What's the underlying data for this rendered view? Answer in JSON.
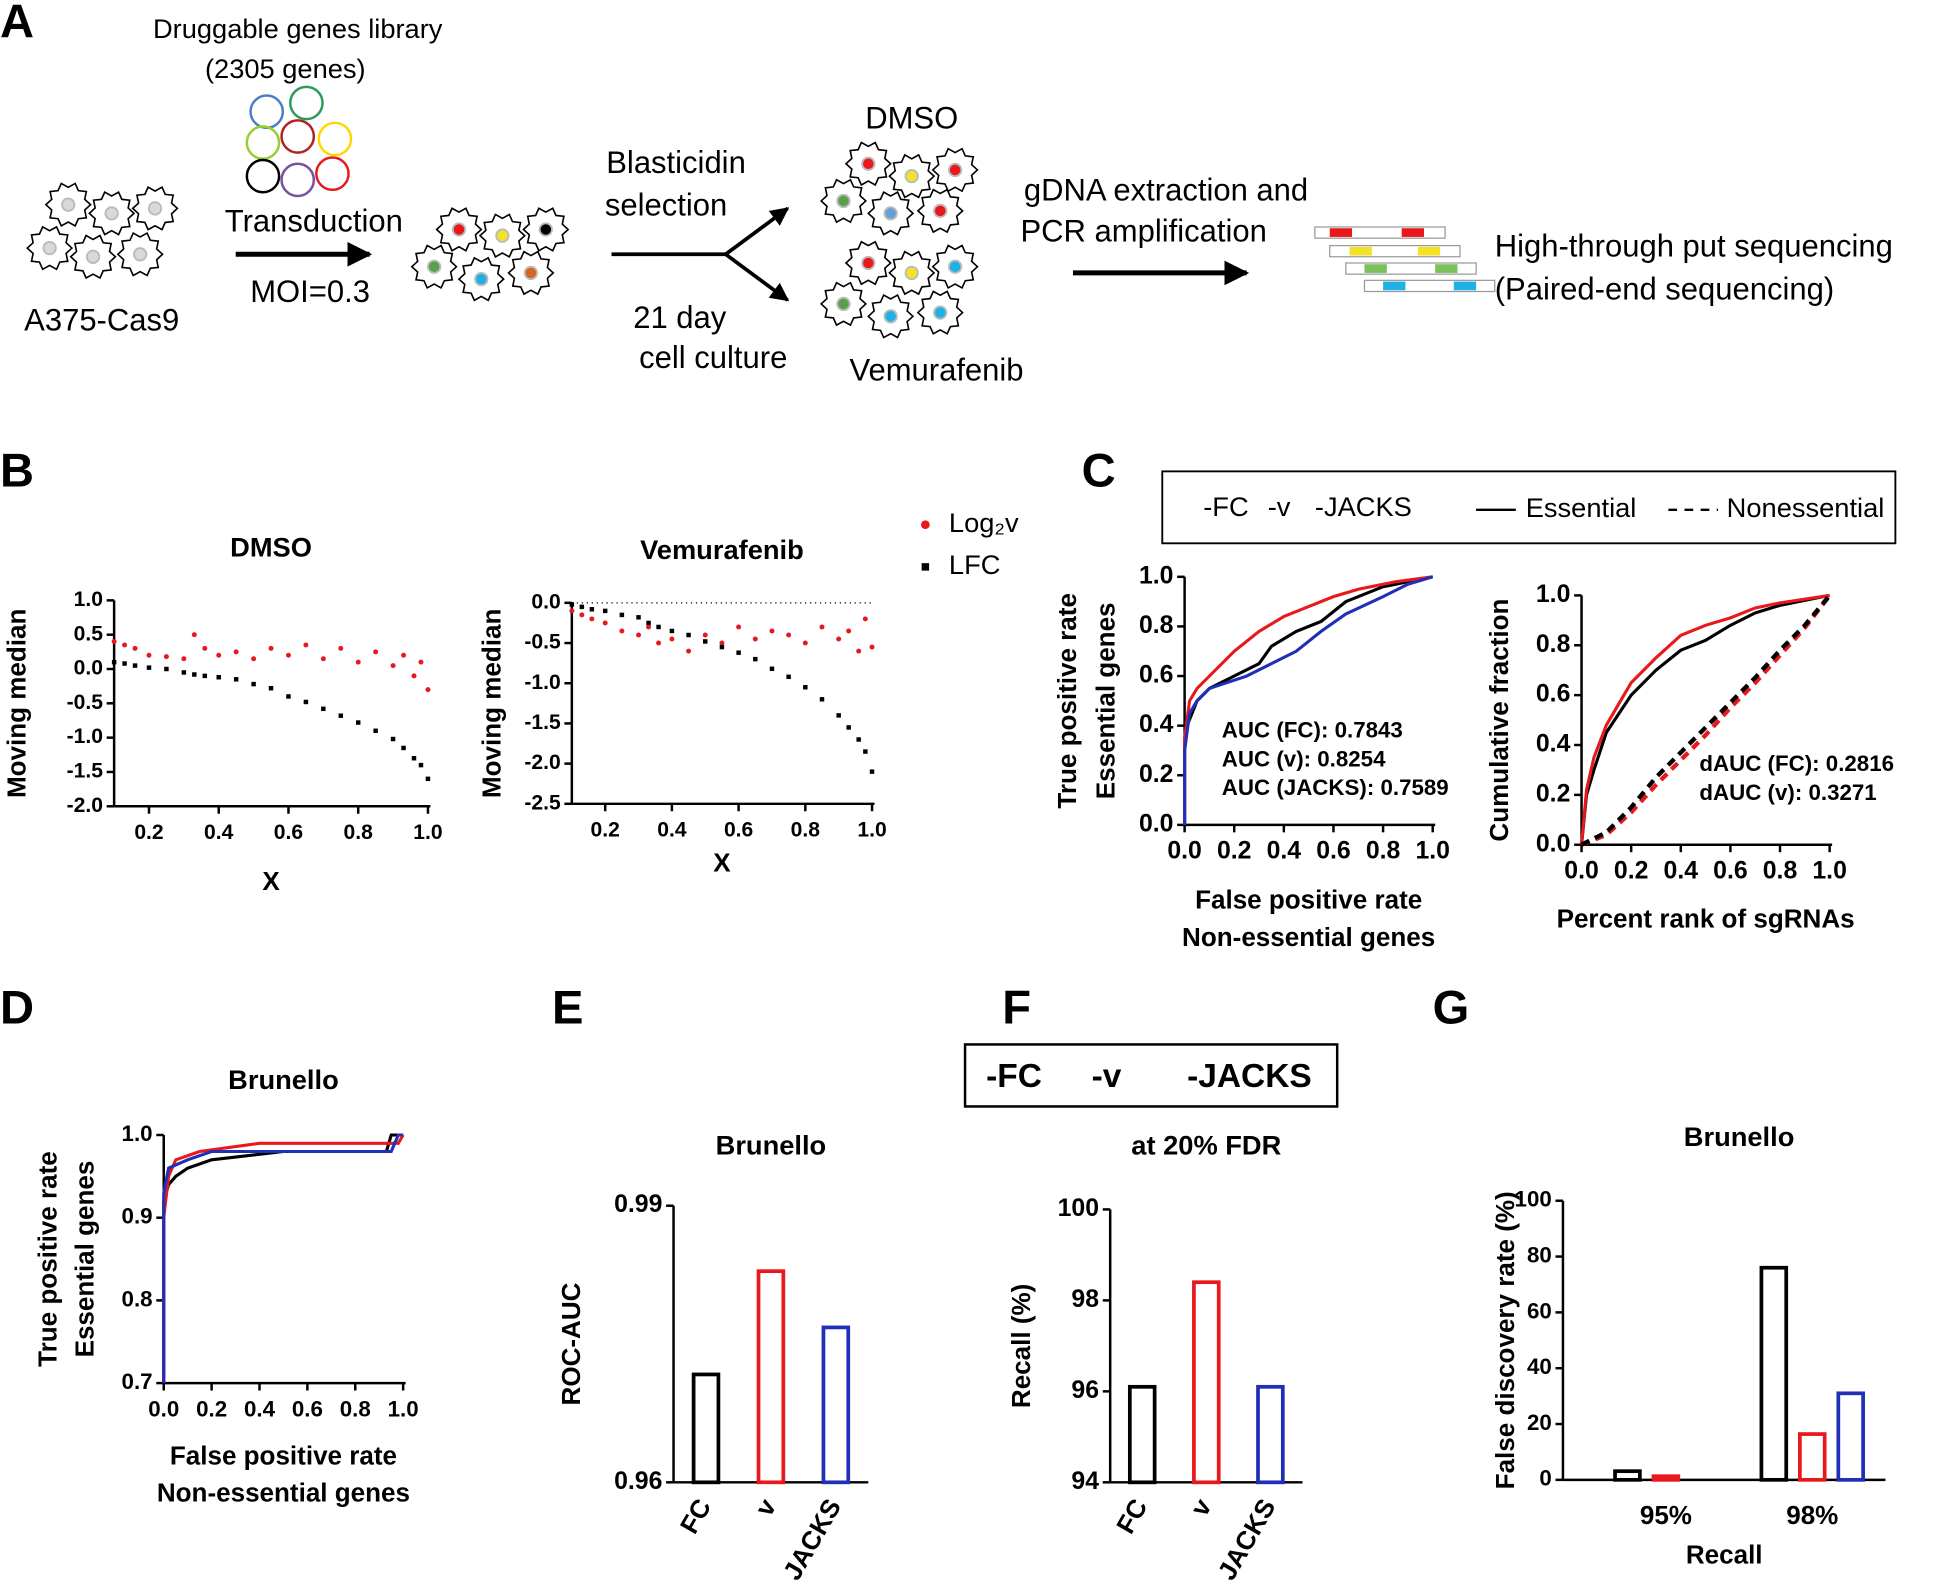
{
  "panels": [
    "A",
    "B",
    "C",
    "D",
    "E",
    "F",
    "G"
  ],
  "diagram": {
    "library": "Druggable genes library",
    "library_size": "(2305 genes)",
    "cell_line": "A375-Cas9",
    "transduction": "Transduction",
    "moi": "MOI=0.3",
    "selection": [
      "Blasticidin",
      "selection"
    ],
    "culture": [
      "21 day",
      "cell culture"
    ],
    "conditions": [
      "DMSO",
      "Vemurafenib"
    ],
    "extraction": [
      "gDNA extraction and",
      "PCR amplification"
    ],
    "sequencing": [
      "High-through put sequencing",
      "(Paired-end sequencing)"
    ]
  },
  "chart_data": [
    {
      "type": "scatter",
      "title": "DMSO",
      "x_label": "X",
      "y_label": "Moving median",
      "xlim": [
        0.1,
        1.0
      ],
      "xticks": [
        0.2,
        0.4,
        0.6,
        0.8,
        {
          "value": 1,
          "label": "1.0"
        }
      ],
      "ylim": [
        -2,
        1
      ],
      "yticks": [
        {
          "value": -2,
          "label": "-2.0"
        },
        -1.5,
        {
          "value": -1,
          "label": "-1.0"
        },
        -0.5,
        {
          "value": 0,
          "label": "0.0"
        },
        0.5,
        {
          "value": 1,
          "label": "1.0"
        }
      ],
      "series": [
        {
          "name": "Log₂v",
          "color": "#e8191c",
          "marker": "circle",
          "x": [
            0.1,
            0.13,
            0.16,
            0.2,
            0.25,
            0.3,
            0.33,
            0.36,
            0.4,
            0.45,
            0.5,
            0.55,
            0.6,
            0.65,
            0.7,
            0.75,
            0.8,
            0.85,
            0.9,
            0.93,
            0.96,
            0.98,
            1.0
          ],
          "values": [
            0.4,
            0.35,
            0.3,
            0.2,
            0.18,
            0.15,
            0.5,
            0.3,
            0.2,
            0.25,
            0.15,
            0.3,
            0.2,
            0.35,
            0.15,
            0.3,
            0.1,
            0.25,
            0.05,
            0.2,
            -0.1,
            0.1,
            -0.3
          ]
        },
        {
          "name": "LFC",
          "color": "#000000",
          "marker": "square",
          "x": [
            0.1,
            0.13,
            0.16,
            0.2,
            0.25,
            0.3,
            0.33,
            0.36,
            0.4,
            0.45,
            0.5,
            0.55,
            0.6,
            0.65,
            0.7,
            0.75,
            0.8,
            0.85,
            0.9,
            0.93,
            0.96,
            0.98,
            1.0
          ],
          "values": [
            0.1,
            0.08,
            0.05,
            0.02,
            0,
            -0.05,
            -0.08,
            -0.1,
            -0.12,
            -0.15,
            -0.22,
            -0.28,
            -0.4,
            -0.48,
            -0.58,
            -0.68,
            -0.78,
            -0.9,
            -1.02,
            -1.15,
            -1.3,
            -1.4,
            -1.6
          ]
        }
      ]
    },
    {
      "type": "scatter",
      "title": "Vemurafenib",
      "x_label": "X",
      "y_label": "Moving median",
      "xlim": [
        0.1,
        1.0
      ],
      "xticks": [
        0.2,
        0.4,
        0.6,
        0.8,
        {
          "value": 1,
          "label": "1.0"
        }
      ],
      "ylim": [
        -2.5,
        0
      ],
      "yticks": [
        -2.5,
        {
          "value": -2,
          "label": "-2.0"
        },
        -1.5,
        {
          "value": -1,
          "label": "-1.0"
        },
        -0.5,
        {
          "value": 0,
          "label": "0.0"
        }
      ],
      "reference_line": 0,
      "series": [
        {
          "color": "#e8191c",
          "marker": "circle",
          "x": [
            0.1,
            0.13,
            0.16,
            0.2,
            0.25,
            0.3,
            0.33,
            0.36,
            0.4,
            0.45,
            0.5,
            0.55,
            0.6,
            0.65,
            0.7,
            0.75,
            0.8,
            0.85,
            0.9,
            0.93,
            0.96,
            0.98,
            1.0
          ],
          "values": [
            -0.1,
            -0.15,
            -0.2,
            -0.25,
            -0.35,
            -0.4,
            -0.3,
            -0.5,
            -0.45,
            -0.6,
            -0.4,
            -0.5,
            -0.3,
            -0.45,
            -0.35,
            -0.4,
            -0.5,
            -0.3,
            -0.45,
            -0.35,
            -0.6,
            -0.2,
            -0.55
          ]
        },
        {
          "color": "#000000",
          "marker": "square",
          "x": [
            0.1,
            0.13,
            0.16,
            0.2,
            0.25,
            0.3,
            0.33,
            0.36,
            0.4,
            0.45,
            0.5,
            0.55,
            0.6,
            0.65,
            0.7,
            0.75,
            0.8,
            0.85,
            0.9,
            0.93,
            0.96,
            0.98,
            1.0
          ],
          "values": [
            -0.02,
            -0.05,
            -0.08,
            -0.1,
            -0.15,
            -0.18,
            -0.25,
            -0.3,
            -0.35,
            -0.4,
            -0.48,
            -0.55,
            -0.62,
            -0.7,
            -0.82,
            -0.92,
            -1.05,
            -1.2,
            -1.4,
            -1.55,
            -1.7,
            -1.85,
            -2.1
          ]
        }
      ]
    },
    {
      "type": "line",
      "x_label": [
        "False positive rate",
        "Non-essential genes"
      ],
      "y_label": [
        "True positive rate",
        "Essential genes"
      ],
      "xlim": [
        0,
        1
      ],
      "xticks": [
        {
          "value": 0,
          "label": "0.0"
        },
        0.2,
        0.4,
        0.6,
        0.8,
        {
          "value": 1,
          "label": "1.0"
        }
      ],
      "ylim": [
        0,
        1
      ],
      "yticks": [
        {
          "value": 0,
          "label": "0.0"
        },
        0.2,
        0.4,
        0.6,
        0.8,
        {
          "value": 1,
          "label": "1.0"
        }
      ],
      "legend_styles": [
        {
          "name": "Essential",
          "dash": false
        },
        {
          "name": "Nonessential",
          "dash": true
        }
      ],
      "series": [
        {
          "name": "-FC",
          "color": "#000000",
          "x": [
            0,
            0,
            0.01,
            0.03,
            0.05,
            0.1,
            0.2,
            0.3,
            0.35,
            0.45,
            0.55,
            0.65,
            0.8,
            1
          ],
          "values": [
            0,
            0.3,
            0.4,
            0.45,
            0.5,
            0.55,
            0.6,
            0.65,
            0.72,
            0.78,
            0.82,
            0.9,
            0.96,
            1
          ]
        },
        {
          "name": "-v",
          "color": "#e8191c",
          "x": [
            0,
            0,
            0.02,
            0.05,
            0.1,
            0.2,
            0.3,
            0.4,
            0.5,
            0.6,
            0.7,
            0.85,
            1
          ],
          "values": [
            0,
            0.35,
            0.5,
            0.55,
            0.6,
            0.7,
            0.78,
            0.84,
            0.88,
            0.92,
            0.95,
            0.98,
            1
          ]
        },
        {
          "name": "-JACKS",
          "color": "#1f2fb8",
          "x": [
            0,
            0,
            0.02,
            0.05,
            0.1,
            0.25,
            0.35,
            0.45,
            0.55,
            0.65,
            0.8,
            0.9,
            1
          ],
          "values": [
            0,
            0.3,
            0.45,
            0.5,
            0.55,
            0.6,
            0.65,
            0.7,
            0.78,
            0.85,
            0.92,
            0.97,
            1
          ]
        }
      ],
      "annotations": [
        {
          "text": "AUC (FC): 0.7843",
          "color": "#000000"
        },
        {
          "text": "AUC (v): 0.8254",
          "color": "#e8191c"
        },
        {
          "text": "AUC (JACKS): 0.7589",
          "color": "#2e4a7a"
        }
      ]
    },
    {
      "type": "line",
      "x_label": "Percent rank of sgRNAs",
      "y_label": "Cumulative fraction",
      "xlim": [
        0,
        1
      ],
      "xticks": [
        {
          "value": 0,
          "label": "0.0"
        },
        0.2,
        0.4,
        0.6,
        0.8,
        {
          "value": 1,
          "label": "1.0"
        }
      ],
      "ylim": [
        0,
        1
      ],
      "yticks": [
        {
          "value": 0,
          "label": "0.0"
        },
        0.2,
        0.4,
        0.6,
        0.8,
        {
          "value": 1,
          "label": "1.0"
        }
      ],
      "series": [
        {
          "color": "#000000",
          "dash": false,
          "x": [
            0,
            0.02,
            0.05,
            0.1,
            0.2,
            0.3,
            0.4,
            0.5,
            0.6,
            0.7,
            0.8,
            1
          ],
          "values": [
            0,
            0.2,
            0.3,
            0.45,
            0.6,
            0.7,
            0.78,
            0.82,
            0.88,
            0.93,
            0.96,
            1
          ]
        },
        {
          "color": "#e8191c",
          "dash": false,
          "x": [
            0,
            0.02,
            0.05,
            0.1,
            0.2,
            0.3,
            0.4,
            0.5,
            0.6,
            0.7,
            0.8,
            1
          ],
          "values": [
            0,
            0.22,
            0.35,
            0.48,
            0.65,
            0.75,
            0.84,
            0.88,
            0.91,
            0.95,
            0.97,
            1
          ]
        },
        {
          "color": "#e8191c",
          "dash": true,
          "x": [
            0,
            0.1,
            0.2,
            0.3,
            0.4,
            0.5,
            0.6,
            0.7,
            0.8,
            0.9,
            1
          ],
          "values": [
            0,
            0.04,
            0.13,
            0.24,
            0.34,
            0.44,
            0.55,
            0.65,
            0.76,
            0.87,
            1
          ]
        },
        {
          "color": "#000000",
          "dash": true,
          "x": [
            0,
            0.1,
            0.2,
            0.3,
            0.4,
            0.5,
            0.6,
            0.7,
            0.8,
            0.9,
            1
          ],
          "values": [
            0,
            0.05,
            0.15,
            0.27,
            0.37,
            0.47,
            0.57,
            0.67,
            0.78,
            0.88,
            1
          ]
        }
      ],
      "annotations": [
        {
          "text": "dAUC (FC): 0.2816",
          "color": "#000000"
        },
        {
          "text": "dAUC (v): 0.3271",
          "color": "#e8191c"
        }
      ]
    },
    {
      "type": "line",
      "title": "Brunello",
      "x_label": [
        "False positive rate",
        "Non-essential genes"
      ],
      "y_label": [
        "True positive rate",
        "Essential genes"
      ],
      "xlim": [
        0,
        1
      ],
      "xticks": [
        {
          "value": 0,
          "label": "0.0"
        },
        0.2,
        0.4,
        0.6,
        0.8,
        {
          "value": 1,
          "label": "1.0"
        }
      ],
      "ylim": [
        0.7,
        1
      ],
      "yticks": [
        0.7,
        0.8,
        0.9,
        {
          "value": 1,
          "label": "1.0"
        }
      ],
      "series": [
        {
          "color": "#000000",
          "x": [
            0,
            0,
            0.02,
            0.05,
            0.1,
            0.2,
            0.5,
            0.93,
            0.95,
            1
          ],
          "values": [
            0.7,
            0.92,
            0.94,
            0.95,
            0.96,
            0.97,
            0.98,
            0.98,
            1,
            1
          ]
        },
        {
          "color": "#e8191c",
          "x": [
            0,
            0,
            0.02,
            0.05,
            0.15,
            0.4,
            0.98,
            1
          ],
          "values": [
            0.7,
            0.9,
            0.95,
            0.97,
            0.98,
            0.99,
            0.99,
            1
          ]
        },
        {
          "color": "#1f2fb8",
          "x": [
            0,
            0,
            0.02,
            0.1,
            0.2,
            0.95,
            0.98,
            1
          ],
          "values": [
            0.7,
            0.93,
            0.96,
            0.97,
            0.98,
            0.98,
            1,
            1
          ]
        }
      ]
    },
    {
      "type": "bar",
      "title": "Brunello",
      "y_label": "ROC-AUC",
      "categories": [
        "FC",
        "v",
        "JACKS"
      ],
      "values": [
        0.9717,
        0.9829,
        0.9768
      ],
      "colors": [
        "#000000",
        "#e8191c",
        "#1f2fb8"
      ],
      "ylim": [
        0.96,
        0.99
      ],
      "yticks": [
        0.96,
        0.99
      ]
    },
    {
      "type": "bar",
      "title": "at 20% FDR",
      "y_label": "Recall (%)",
      "categories": [
        "FC",
        "v",
        "JACKS"
      ],
      "values": [
        96.1,
        98.4,
        96.1
      ],
      "colors": [
        "#000000",
        "#e8191c",
        "#1f2fb8"
      ],
      "ylim": [
        94,
        100
      ],
      "yticks": [
        94,
        96,
        98,
        100
      ],
      "legend": [
        {
          "name": "-FC",
          "color": "#000000"
        },
        {
          "name": "-v",
          "color": "#e8191c"
        },
        {
          "name": "-JACKS",
          "color": "#2e4a7a"
        }
      ]
    },
    {
      "type": "bar",
      "title": "Brunello",
      "y_label": "False discovery rate (%)",
      "x_label": "Recall",
      "categories": [
        "95%",
        "98%"
      ],
      "ylim": [
        0,
        100
      ],
      "yticks": [
        0,
        20,
        40,
        60,
        80,
        100
      ],
      "series": [
        {
          "color": "#000000",
          "values": [
            3.1,
            76
          ]
        },
        {
          "color": "#e8191c",
          "values": [
            1.3,
            16.4
          ]
        },
        {
          "color": "#1f2fb8",
          "values": [
            0,
            31
          ]
        }
      ]
    }
  ]
}
